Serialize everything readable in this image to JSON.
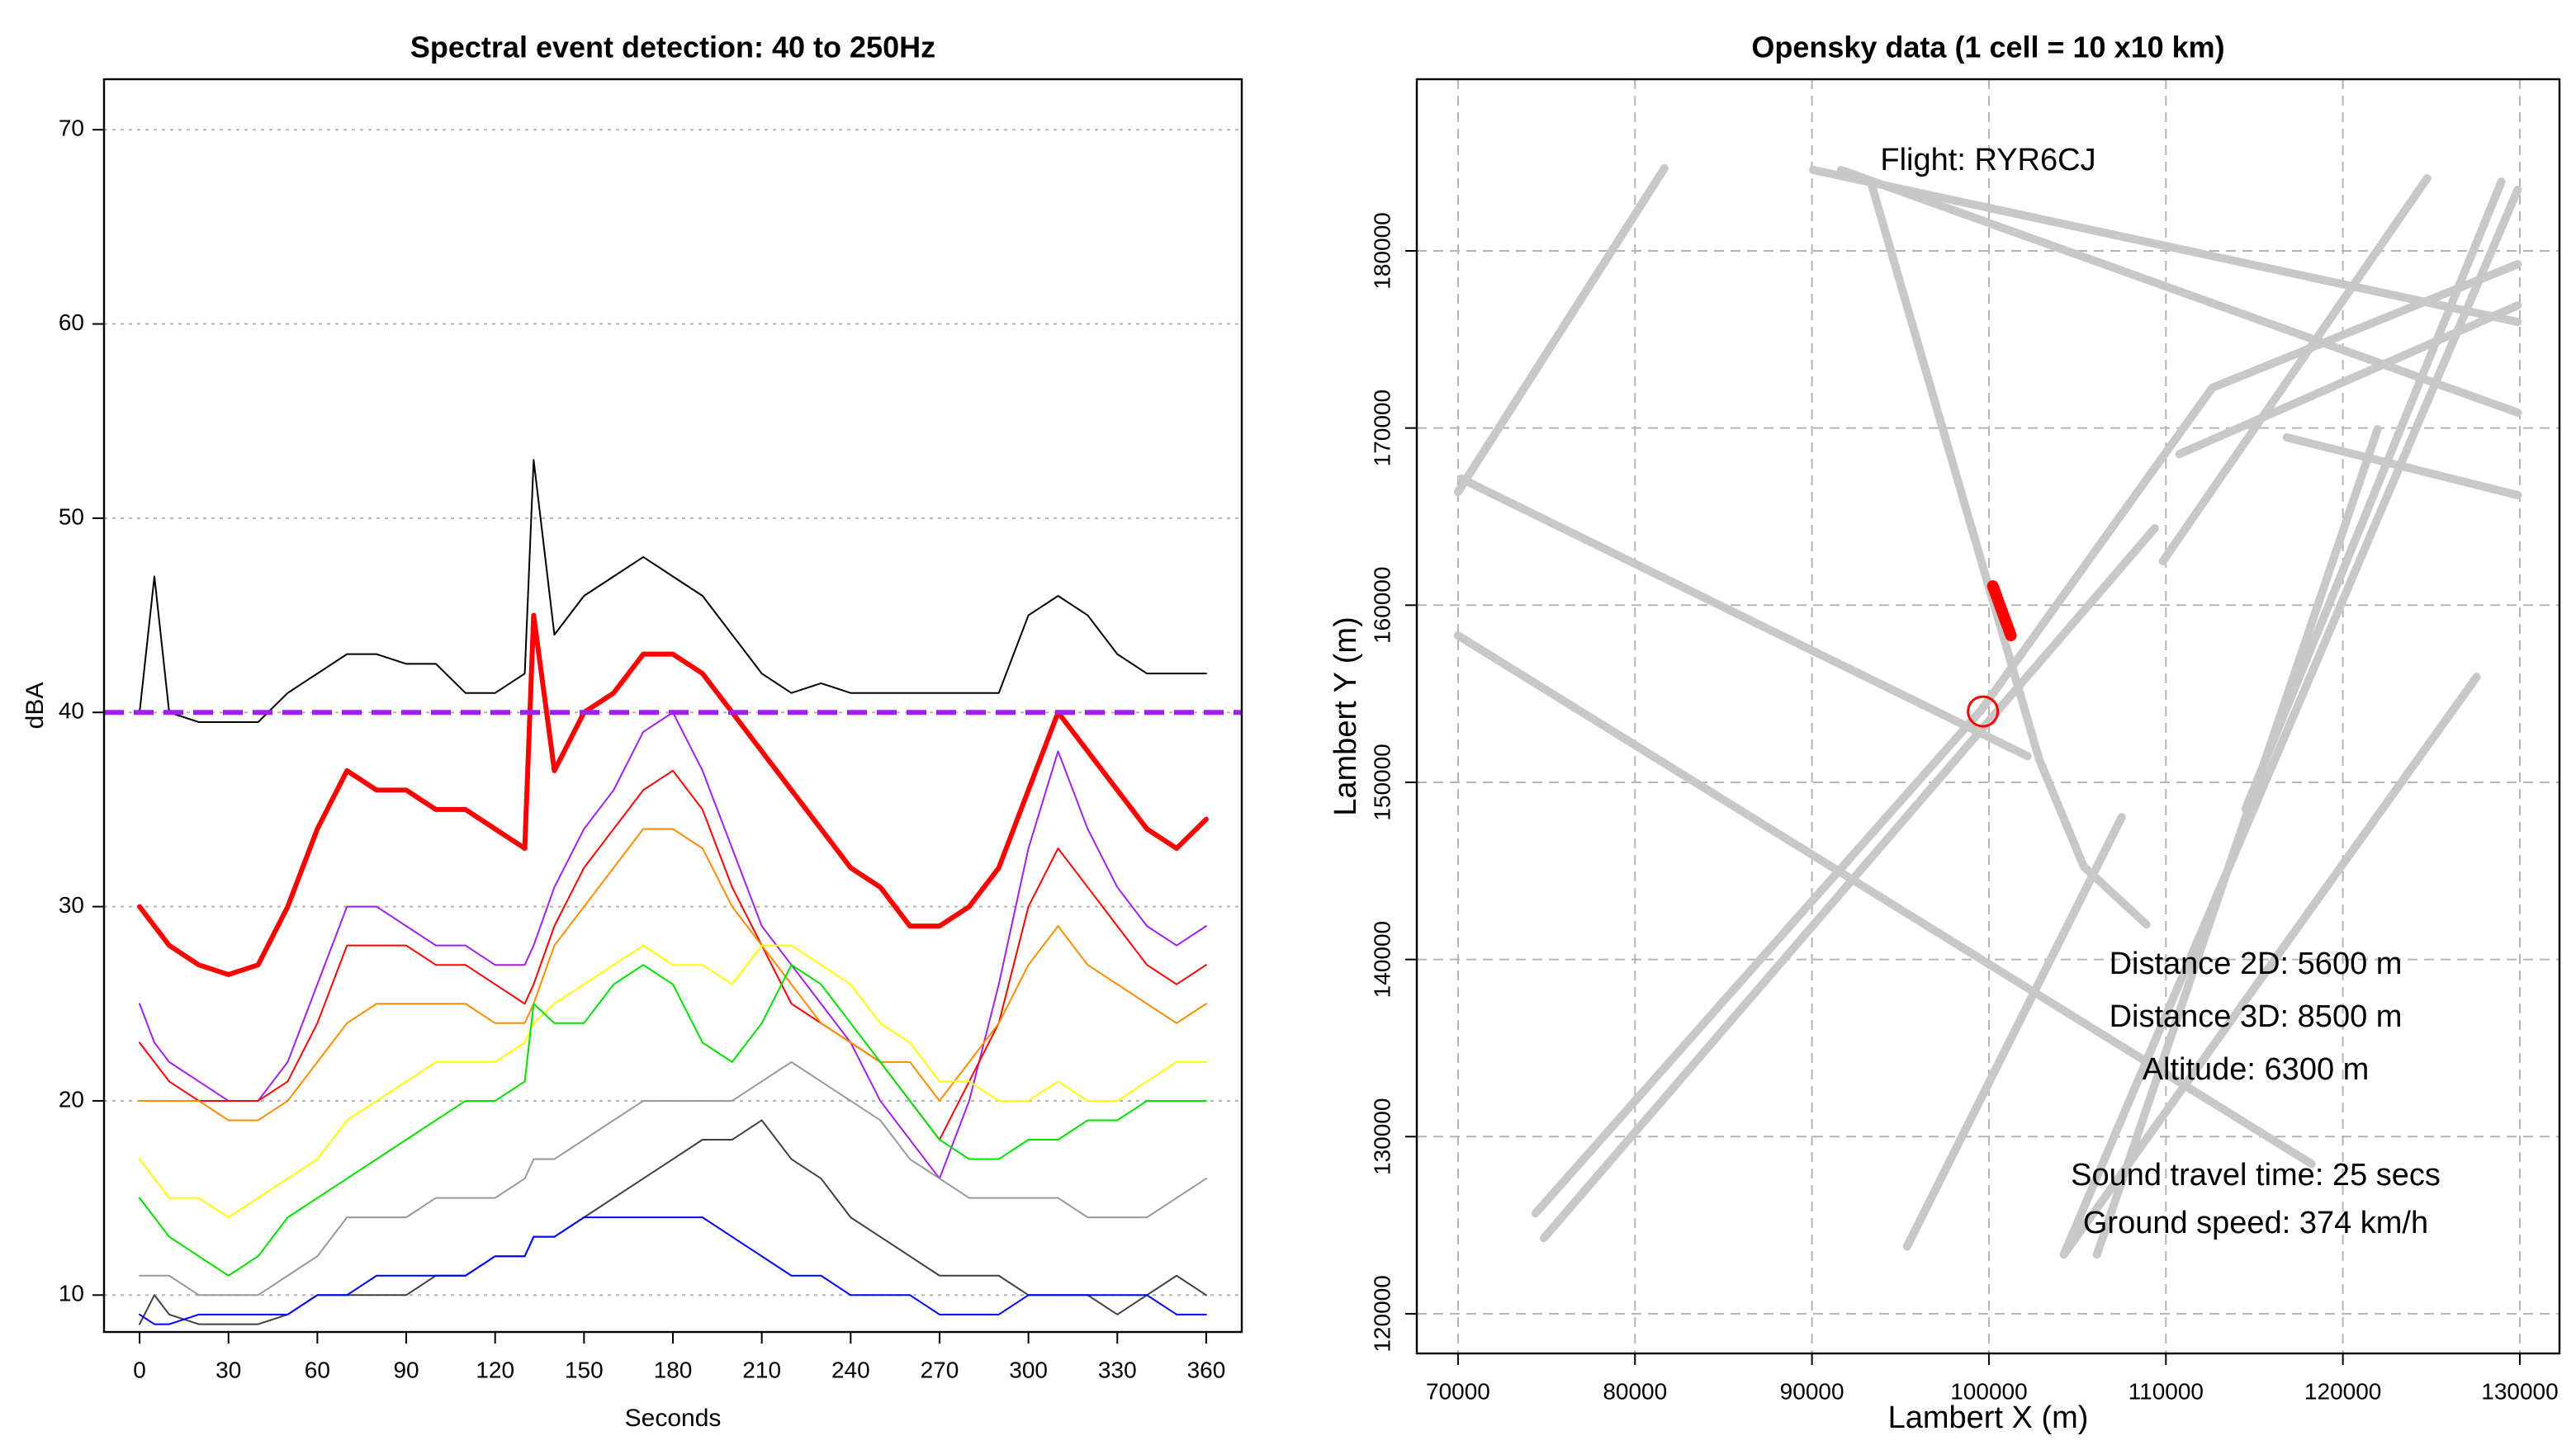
{
  "chart_data": [
    {
      "type": "line",
      "title": "Spectral event detection: 40 to 250Hz",
      "xlabel": "Seconds",
      "ylabel": "dBA",
      "xlim": [
        -12,
        372
      ],
      "ylim": [
        8.1,
        72.6
      ],
      "xticks": [
        0,
        30,
        60,
        90,
        120,
        150,
        180,
        210,
        240,
        270,
        300,
        330,
        360
      ],
      "yticks": [
        10,
        20,
        30,
        40,
        50,
        60,
        70
      ],
      "grid": "y",
      "grid_style": "dotted",
      "hline": {
        "value": 40,
        "color": "#a020f0"
      },
      "x": [
        0,
        5,
        10,
        20,
        30,
        40,
        50,
        60,
        70,
        80,
        90,
        100,
        110,
        120,
        130,
        133,
        140,
        150,
        160,
        170,
        180,
        190,
        200,
        210,
        220,
        230,
        240,
        250,
        260,
        270,
        280,
        290,
        300,
        310,
        320,
        330,
        340,
        350,
        360
      ],
      "series": [
        {
          "color": "#000000",
          "lw": 1,
          "values": [
            40,
            47,
            40,
            39.5,
            39.5,
            39.5,
            41,
            42,
            43,
            43,
            42.5,
            42.5,
            41,
            41,
            42,
            53,
            44,
            46,
            47,
            48,
            47,
            46,
            44,
            42,
            41,
            41.5,
            41,
            41,
            41,
            41,
            41,
            41,
            45,
            46,
            45,
            43,
            42,
            42,
            42
          ]
        },
        {
          "color": "#ff0000",
          "lw": 3,
          "values": [
            30,
            29,
            28,
            27,
            26.5,
            27,
            30,
            34,
            37,
            36,
            36,
            35,
            35,
            34,
            33,
            45,
            37,
            40,
            41,
            43,
            43,
            42,
            40,
            38,
            36,
            34,
            32,
            31,
            29,
            29,
            30,
            32,
            36,
            40,
            38,
            36,
            34,
            33,
            34.5
          ]
        },
        {
          "color": "#a020f0",
          "lw": 1,
          "values": [
            25,
            23,
            22,
            21,
            20,
            20,
            22,
            26,
            30,
            30,
            29,
            28,
            28,
            27,
            27,
            28,
            31,
            34,
            36,
            39,
            40,
            37,
            33,
            29,
            27,
            25,
            23,
            20,
            18,
            16,
            20,
            26,
            33,
            38,
            34,
            31,
            29,
            28,
            29
          ]
        },
        {
          "color": "#ff0000",
          "lw": 1,
          "values": [
            23,
            22,
            21,
            20,
            20,
            20,
            21,
            24,
            28,
            28,
            28,
            27,
            27,
            26,
            25,
            26,
            29,
            32,
            34,
            36,
            37,
            35,
            31,
            28,
            25,
            24,
            23,
            22,
            20,
            18,
            21,
            24,
            30,
            33,
            31,
            29,
            27,
            26,
            27
          ]
        },
        {
          "color": "#ff8c00",
          "lw": 1,
          "values": [
            20,
            20,
            20,
            20,
            19,
            19,
            20,
            22,
            24,
            25,
            25,
            25,
            25,
            24,
            24,
            25,
            28,
            30,
            32,
            34,
            34,
            33,
            30,
            28,
            26,
            24,
            23,
            22,
            22,
            20,
            22,
            24,
            27,
            29,
            27,
            26,
            25,
            24,
            25
          ]
        },
        {
          "color": "#ffff00",
          "lw": 1,
          "values": [
            17,
            16,
            15,
            15,
            14,
            15,
            16,
            17,
            19,
            20,
            21,
            22,
            22,
            22,
            23,
            24,
            25,
            26,
            27,
            28,
            27,
            27,
            26,
            28,
            28,
            27,
            26,
            24,
            23,
            21,
            21,
            20,
            20,
            21,
            20,
            20,
            21,
            22,
            22
          ]
        },
        {
          "color": "#00e000",
          "lw": 1,
          "values": [
            15,
            14,
            13,
            12,
            11,
            12,
            14,
            15,
            16,
            17,
            18,
            19,
            20,
            20,
            21,
            25,
            24,
            24,
            26,
            27,
            26,
            23,
            22,
            24,
            27,
            26,
            24,
            22,
            20,
            18,
            17,
            17,
            18,
            18,
            19,
            19,
            20,
            20,
            20
          ]
        },
        {
          "color": "#999999",
          "lw": 1,
          "values": [
            11,
            11,
            11,
            10,
            10,
            10,
            11,
            12,
            14,
            14,
            14,
            15,
            15,
            15,
            16,
            17,
            17,
            18,
            19,
            20,
            20,
            20,
            20,
            21,
            22,
            21,
            20,
            19,
            17,
            16,
            15,
            15,
            15,
            15,
            14,
            14,
            14,
            15,
            16
          ]
        },
        {
          "color": "#404040",
          "lw": 1,
          "values": [
            8.5,
            10,
            9,
            8.5,
            8.5,
            8.5,
            9,
            10,
            10,
            10,
            10,
            11,
            11,
            12,
            12,
            13,
            13,
            14,
            15,
            16,
            17,
            18,
            18,
            19,
            17,
            16,
            14,
            13,
            12,
            11,
            11,
            11,
            10,
            10,
            10,
            9,
            10,
            11,
            10
          ]
        },
        {
          "color": "#0000ff",
          "lw": 1,
          "values": [
            9,
            8.5,
            8.5,
            9,
            9,
            9,
            9,
            10,
            10,
            11,
            11,
            11,
            11,
            12,
            12,
            13,
            13,
            14,
            14,
            14,
            14,
            14,
            13,
            12,
            11,
            11,
            10,
            10,
            10,
            9,
            9,
            9,
            10,
            10,
            10,
            10,
            10,
            9,
            9
          ]
        }
      ]
    },
    {
      "type": "line",
      "title": "Opensky data (1 cell = 10 x10 km)",
      "xlabel": "Lambert X (m)",
      "ylabel": "Lambert Y (m)",
      "xlim": [
        67670,
        132240
      ],
      "ylim": [
        117760,
        189690
      ],
      "xticks": [
        70000,
        80000,
        90000,
        100000,
        110000,
        120000,
        130000
      ],
      "yticks": [
        120000,
        130000,
        140000,
        150000,
        160000,
        170000,
        180000
      ],
      "grid": "both",
      "grid_style": "dashed",
      "annotations": [
        "Flight: RYR6CJ",
        "Distance 2D: 5600  m",
        "Distance 3D: 8500  m",
        "Altitude: 6300  m",
        "Sound travel time: 25  secs",
        "Ground speed: 374  km/h"
      ],
      "marker": {
        "x": 99660,
        "y": 154000,
        "color": "#ff0000"
      },
      "series": [
        {
          "color": "#c8c8c8",
          "lw": 5,
          "x": [
            70000,
            81660
          ],
          "y": [
            166390,
            184660
          ]
        },
        {
          "color": "#c8c8c8",
          "lw": 5,
          "x": [
            70190,
            102180
          ],
          "y": [
            167140,
            151480
          ]
        },
        {
          "color": "#c8c8c8",
          "lw": 5,
          "x": [
            70000,
            118230
          ],
          "y": [
            158290,
            128460
          ]
        },
        {
          "color": "#c8c8c8",
          "lw": 5,
          "x": [
            74380,
            99570,
            112620,
            129880
          ],
          "y": [
            125670,
            154090,
            172270,
            179250
          ]
        },
        {
          "color": "#c8c8c8",
          "lw": 5,
          "x": [
            74850,
            109370
          ],
          "y": [
            124270,
            164340
          ]
        },
        {
          "color": "#c8c8c8",
          "lw": 5,
          "x": [
            110760,
            129880
          ],
          "y": [
            168530,
            176920
          ]
        },
        {
          "color": "#c8c8c8",
          "lw": 5,
          "x": [
            90060,
            129880
          ],
          "y": [
            184570,
            175990
          ]
        },
        {
          "color": "#c8c8c8",
          "lw": 5,
          "x": [
            91640,
            129880
          ],
          "y": [
            184570,
            170870
          ]
        },
        {
          "color": "#c8c8c8",
          "lw": 5,
          "x": [
            93320,
            99570,
            102840,
            105360,
            108900
          ],
          "y": [
            183910,
            162480,
            151300,
            145240,
            141980
          ]
        },
        {
          "color": "#c8c8c8",
          "lw": 5,
          "x": [
            116830,
            129880
          ],
          "y": [
            169470,
            166210
          ]
        },
        {
          "color": "#c8c8c8",
          "lw": 5,
          "x": [
            128960,
            114500
          ],
          "y": [
            183910,
            148500
          ]
        },
        {
          "color": "#c8c8c8",
          "lw": 5,
          "x": [
            129880,
            104230
          ],
          "y": [
            183450,
            123340
          ]
        },
        {
          "color": "#c8c8c8",
          "lw": 5,
          "x": [
            124760,
            109830
          ],
          "y": [
            184100,
            162480
          ]
        },
        {
          "color": "#c8c8c8",
          "lw": 5,
          "x": [
            121960,
            106100
          ],
          "y": [
            169930,
            123340
          ]
        },
        {
          "color": "#c8c8c8",
          "lw": 5,
          "x": [
            127560,
            104230
          ],
          "y": [
            155950,
            123340
          ]
        },
        {
          "color": "#c8c8c8",
          "lw": 5,
          "x": [
            107500,
            95370
          ],
          "y": [
            148030,
            123800
          ]
        },
        {
          "color": "#ff0000",
          "lw": 7,
          "x": [
            100220,
            101240
          ],
          "y": [
            161080,
            158290
          ]
        }
      ]
    }
  ]
}
